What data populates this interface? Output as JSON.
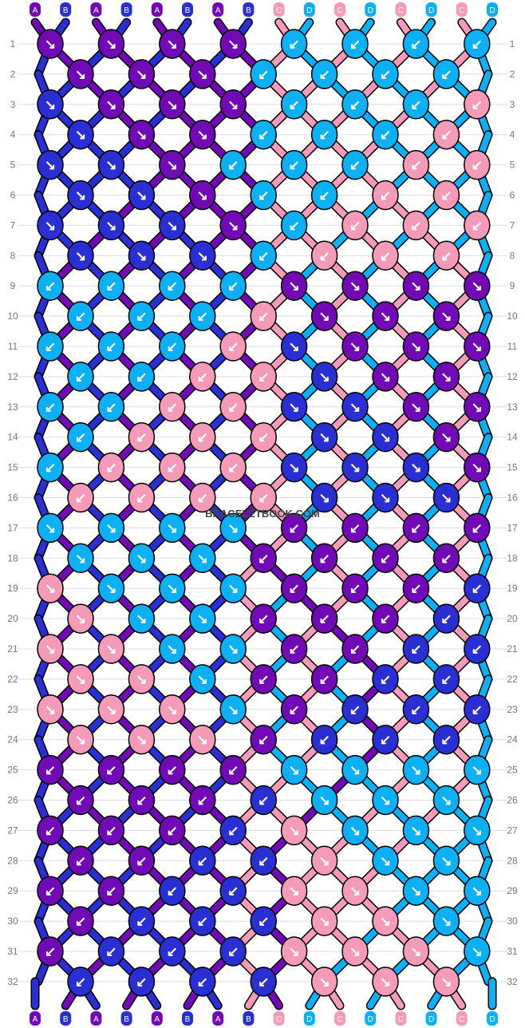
{
  "watermark": "BRACELETBOOK.COM",
  "colors": {
    "A": "#7209b7",
    "B": "#2a2fd4",
    "C": "#f59ab8",
    "D": "#0bb0f5",
    "outline": "#000000",
    "arrow": "#ffffff",
    "rowline": "#dddddd",
    "rowlabel": "#777777"
  },
  "strings": [
    "A",
    "B",
    "A",
    "B",
    "A",
    "B",
    "A",
    "B",
    "C",
    "D",
    "C",
    "D",
    "C",
    "D",
    "C",
    "D"
  ],
  "rows": [
    [
      "A",
      "A",
      "A",
      "A",
      "D",
      "D",
      "D",
      "D"
    ],
    [
      "A",
      "A",
      "A",
      "D",
      "D",
      "D",
      "D"
    ],
    [
      "B",
      "A",
      "A",
      "A",
      "D",
      "D",
      "D",
      "C"
    ],
    [
      "B",
      "A",
      "A",
      "D",
      "D",
      "D",
      "C"
    ],
    [
      "B",
      "B",
      "A",
      "D",
      "D",
      "D",
      "C",
      "C"
    ],
    [
      "B",
      "B",
      "A",
      "D",
      "D",
      "C",
      "C"
    ],
    [
      "B",
      "B",
      "B",
      "A",
      "D",
      "C",
      "C",
      "C"
    ],
    [
      "B",
      "B",
      "B",
      "D",
      "C",
      "C",
      "C"
    ],
    [
      "D",
      "D",
      "D",
      "D",
      "A",
      "A",
      "A",
      "A"
    ],
    [
      "D",
      "D",
      "D",
      "C",
      "A",
      "A",
      "A"
    ],
    [
      "D",
      "D",
      "D",
      "C",
      "B",
      "A",
      "A",
      "A"
    ],
    [
      "D",
      "D",
      "C",
      "C",
      "B",
      "A",
      "A"
    ],
    [
      "D",
      "D",
      "C",
      "C",
      "B",
      "B",
      "A",
      "A"
    ],
    [
      "D",
      "C",
      "C",
      "C",
      "B",
      "B",
      "A"
    ],
    [
      "D",
      "C",
      "C",
      "C",
      "B",
      "B",
      "B",
      "A"
    ],
    [
      "C",
      "C",
      "C",
      "C",
      "B",
      "B",
      "B"
    ],
    [
      "D",
      "D",
      "D",
      "D",
      "A",
      "A",
      "A",
      "A"
    ],
    [
      "D",
      "D",
      "D",
      "A",
      "A",
      "A",
      "A"
    ],
    [
      "C",
      "D",
      "D",
      "D",
      "A",
      "A",
      "A",
      "B"
    ],
    [
      "C",
      "D",
      "D",
      "A",
      "A",
      "A",
      "B"
    ],
    [
      "C",
      "C",
      "D",
      "D",
      "A",
      "A",
      "B",
      "B"
    ],
    [
      "C",
      "C",
      "D",
      "A",
      "A",
      "B",
      "B"
    ],
    [
      "C",
      "C",
      "C",
      "D",
      "A",
      "B",
      "B",
      "B"
    ],
    [
      "C",
      "C",
      "C",
      "A",
      "B",
      "B",
      "B"
    ],
    [
      "A",
      "A",
      "A",
      "A",
      "D",
      "D",
      "D",
      "D"
    ],
    [
      "A",
      "A",
      "A",
      "B",
      "D",
      "D",
      "D"
    ],
    [
      "A",
      "A",
      "A",
      "B",
      "C",
      "D",
      "D",
      "D"
    ],
    [
      "A",
      "A",
      "B",
      "B",
      "C",
      "D",
      "D"
    ],
    [
      "A",
      "A",
      "B",
      "B",
      "C",
      "C",
      "D",
      "D"
    ],
    [
      "A",
      "B",
      "B",
      "B",
      "C",
      "C",
      "D"
    ],
    [
      "A",
      "B",
      "B",
      "B",
      "C",
      "C",
      "C",
      "D"
    ],
    [
      "B",
      "B",
      "B",
      "B",
      "C",
      "C",
      "C"
    ]
  ],
  "directions": [
    [
      "↘",
      "↘",
      "↘",
      "↘",
      "↙",
      "↙",
      "↙",
      "↙"
    ],
    [
      "↘",
      "↘",
      "↘",
      "↙",
      "↙",
      "↙",
      "↙"
    ],
    [
      "↘",
      "↘",
      "↘",
      "↘",
      "↙",
      "↙",
      "↙",
      "↙"
    ],
    [
      "↘",
      "↘",
      "↘",
      "↙",
      "↙",
      "↙",
      "↙"
    ],
    [
      "↘",
      "↘",
      "↘",
      "↙",
      "↙",
      "↙",
      "↙",
      "↙"
    ],
    [
      "↘",
      "↘",
      "↘",
      "↙",
      "↙",
      "↙",
      "↙"
    ],
    [
      "↘",
      "↘",
      "↘",
      "↘",
      "↙",
      "↙",
      "↙",
      "↙"
    ],
    [
      "↘",
      "↘",
      "↘",
      "↙",
      "↙",
      "↙",
      "↙"
    ],
    [
      "↙",
      "↙",
      "↙",
      "↙",
      "↘",
      "↘",
      "↘",
      "↘"
    ],
    [
      "↙",
      "↙",
      "↙",
      "↙",
      "↘",
      "↘",
      "↘"
    ],
    [
      "↙",
      "↙",
      "↙",
      "↙",
      "↘",
      "↘",
      "↘",
      "↘"
    ],
    [
      "↙",
      "↙",
      "↙",
      "↙",
      "↘",
      "↘",
      "↘"
    ],
    [
      "↙",
      "↙",
      "↙",
      "↙",
      "↘",
      "↘",
      "↘",
      "↘"
    ],
    [
      "↙",
      "↙",
      "↙",
      "↙",
      "↘",
      "↘",
      "↘"
    ],
    [
      "↙",
      "↙",
      "↙",
      "↙",
      "↘",
      "↘",
      "↘",
      "↘"
    ],
    [
      "↙",
      "↙",
      "↙",
      "↙",
      "↘",
      "↘",
      "↘"
    ],
    [
      "↘",
      "↘",
      "↘",
      "↘",
      "↙",
      "↙",
      "↙",
      "↙"
    ],
    [
      "↘",
      "↘",
      "↘",
      "↙",
      "↙",
      "↙",
      "↙"
    ],
    [
      "↘",
      "↘",
      "↘",
      "↘",
      "↙",
      "↙",
      "↙",
      "↙"
    ],
    [
      "↘",
      "↘",
      "↘",
      "↙",
      "↙",
      "↙",
      "↙"
    ],
    [
      "↘",
      "↘",
      "↘",
      "↘",
      "↙",
      "↙",
      "↙",
      "↙"
    ],
    [
      "↘",
      "↘",
      "↘",
      "↙",
      "↙",
      "↙",
      "↙"
    ],
    [
      "↘",
      "↘",
      "↘",
      "↘",
      "↙",
      "↙",
      "↙",
      "↙"
    ],
    [
      "↘",
      "↘",
      "↘",
      "↙",
      "↙",
      "↙",
      "↙"
    ],
    [
      "↙",
      "↙",
      "↙",
      "↙",
      "↘",
      "↘",
      "↘",
      "↘"
    ],
    [
      "↙",
      "↙",
      "↙",
      "↙",
      "↘",
      "↘",
      "↘"
    ],
    [
      "↙",
      "↙",
      "↙",
      "↙",
      "↘",
      "↘",
      "↘",
      "↘"
    ],
    [
      "↙",
      "↙",
      "↙",
      "↙",
      "↘",
      "↘",
      "↘"
    ],
    [
      "↙",
      "↙",
      "↙",
      "↙",
      "↘",
      "↘",
      "↘",
      "↘"
    ],
    [
      "↙",
      "↙",
      "↙",
      "↙",
      "↘",
      "↘",
      "↘"
    ],
    [
      "↙",
      "↙",
      "↙",
      "↙",
      "↘",
      "↘",
      "↘",
      "↘"
    ],
    [
      "↙",
      "↙",
      "↙",
      "↙",
      "↘",
      "↘",
      "↘"
    ]
  ],
  "row_numbers": [
    "1",
    "2",
    "3",
    "4",
    "5",
    "6",
    "7",
    "8",
    "9",
    "10",
    "11",
    "12",
    "13",
    "14",
    "15",
    "16",
    "17",
    "18",
    "19",
    "20",
    "21",
    "22",
    "23",
    "24",
    "25",
    "26",
    "27",
    "28",
    "29",
    "30",
    "31",
    "32"
  ]
}
